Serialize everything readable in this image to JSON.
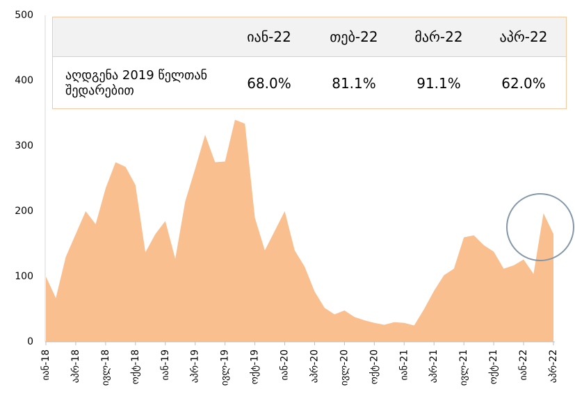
{
  "chart_data": {
    "type": "area",
    "categories": [
      "იან-18",
      null,
      null,
      "აპრ-18",
      null,
      null,
      "ივლ-18",
      null,
      null,
      "ოქტ-18",
      null,
      null,
      "იან-19",
      null,
      null,
      "აპრ-19",
      null,
      null,
      "ივლ-19",
      null,
      null,
      "ოქტ-19",
      null,
      null,
      "იან-20",
      null,
      null,
      "აპრ-20",
      null,
      null,
      "ივლ-20",
      null,
      null,
      "ოქტ-20",
      null,
      null,
      "იან-21",
      null,
      null,
      "აპრ-21",
      null,
      null,
      "ივლ-21",
      null,
      null,
      "ოქტ-21",
      null,
      null,
      "იან-22",
      null,
      null,
      "აპრ-22"
    ],
    "values": [
      100,
      67,
      130,
      165,
      200,
      180,
      235,
      275,
      268,
      240,
      137,
      165,
      185,
      127,
      215,
      265,
      317,
      275,
      276,
      340,
      334,
      190,
      140,
      170,
      200,
      140,
      115,
      77,
      52,
      42,
      48,
      38,
      33,
      29,
      26,
      30,
      29,
      25,
      50,
      78,
      102,
      112,
      160,
      163,
      148,
      138,
      112,
      117,
      126,
      104,
      197,
      165
    ],
    "color": "#f9bf8f",
    "ylim": [
      0,
      500
    ],
    "yticks": [
      0,
      100,
      200,
      300,
      400,
      500
    ],
    "table": {
      "header": [
        "იან-22",
        "თებ-22",
        "მარ-22",
        "აპრ-22"
      ],
      "rows": [
        [
          "აღდგენა 2019 წელთან შედარებით",
          "68.0%",
          "81.1%",
          "91.1%",
          "62.0%"
        ]
      ]
    }
  }
}
